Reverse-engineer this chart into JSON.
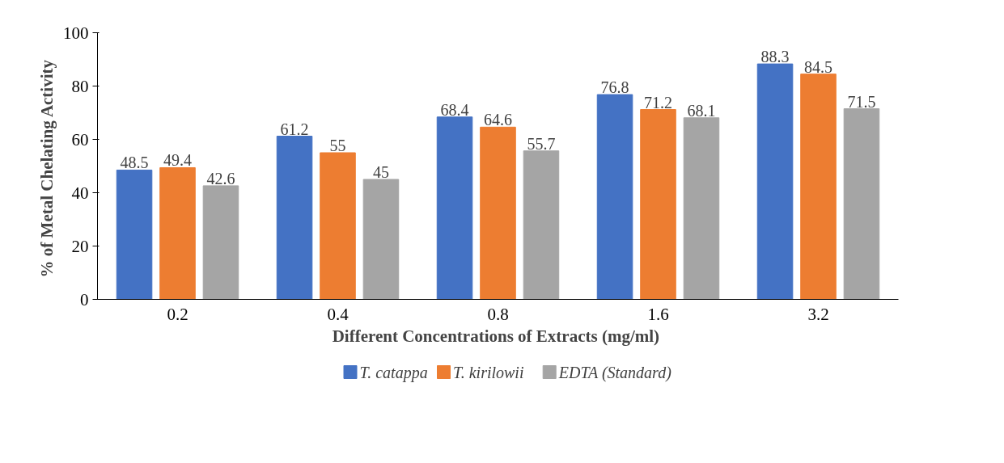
{
  "chart_data": {
    "type": "bar",
    "xlabel": "Different Concentrations  of Extracts (mg/ml)",
    "ylabel": "% of Metal Chelating  Activity",
    "categories": [
      "0.2",
      "0.4",
      "0.8",
      "1.6",
      "3.2"
    ],
    "series": [
      {
        "name": "T. catappa",
        "color": "#4472c4",
        "values": [
          48.5,
          61.2,
          68.4,
          76.8,
          88.3
        ]
      },
      {
        "name": "T. kirilowii",
        "color": "#ed7d31",
        "values": [
          49.4,
          55,
          64.6,
          71.2,
          84.5
        ]
      },
      {
        "name": "EDTA (Standard)",
        "color": "#a5a5a5",
        "values": [
          42.6,
          45,
          55.7,
          68.1,
          71.5
        ]
      }
    ],
    "ylim": [
      0,
      100
    ],
    "yticks": [
      0,
      20,
      40,
      60,
      80,
      100
    ],
    "data_labels": true,
    "legend": "bottom",
    "grid": false
  }
}
